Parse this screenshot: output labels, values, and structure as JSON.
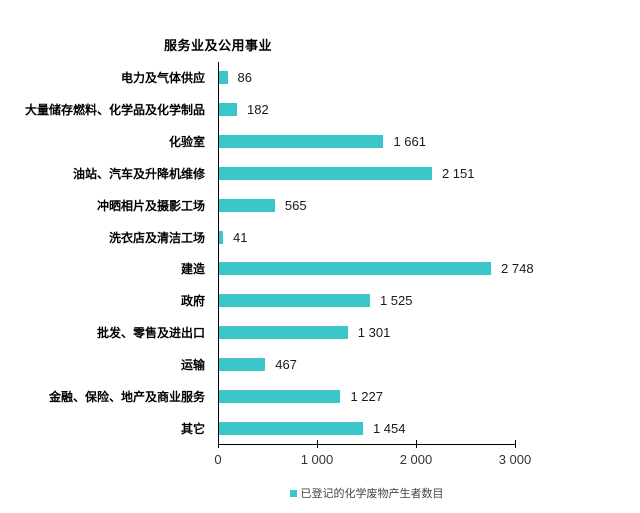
{
  "chart_data": {
    "type": "bar",
    "orientation": "horizontal",
    "title": "服务业及公用事业",
    "categories": [
      "电力及气体供应",
      "大量储存燃料、化学品及化学制品",
      "化验室",
      "油站、汽车及升降机维修",
      "冲晒相片及摄影工场",
      "洗衣店及清洁工场",
      "建造",
      "政府",
      "批发、零售及进出口",
      "运输",
      "金融、保险、地产及商业服务",
      "其它"
    ],
    "values": [
      86,
      182,
      1661,
      2151,
      565,
      41,
      2748,
      1525,
      1301,
      467,
      1227,
      1454
    ],
    "value_labels": [
      "86",
      "182",
      "1 661",
      "2 151",
      "565",
      "41",
      "2 748",
      "1 525",
      "1 301",
      "467",
      "1 227",
      "1 454"
    ],
    "xlabel": "",
    "ylabel": "",
    "xlim": [
      0,
      3000
    ],
    "x_ticks": [
      0,
      1000,
      2000,
      3000
    ],
    "x_tick_labels": [
      "0",
      "1 000",
      "2 000",
      "3 000"
    ],
    "grid": false,
    "legend": [
      "已登记的化学废物产生者数目"
    ],
    "legend_position": "bottom-center",
    "bar_color": "#3bc7c9",
    "axis_color": "#000000"
  }
}
